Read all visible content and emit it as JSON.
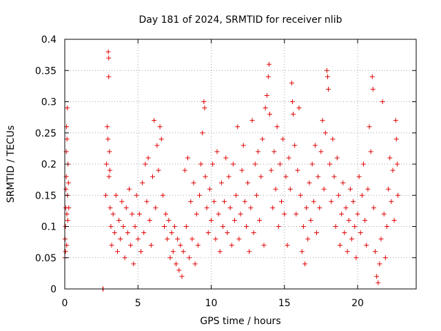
{
  "chart_data": {
    "type": "scatter",
    "title": "Day 181 of 2024, SRMTID for receiver nlib",
    "xlabel": "GPS time / hours",
    "ylabel": "SRMTID / TECUs",
    "xlim": [
      0,
      24
    ],
    "ylim": [
      0,
      0.4
    ],
    "x_ticks": [
      0,
      5,
      10,
      15,
      20
    ],
    "x_tick_labels": [
      "0",
      "5",
      "10",
      "15",
      "20"
    ],
    "y_ticks": [
      0,
      0.05,
      0.1,
      0.15,
      0.2,
      0.25,
      0.3,
      0.35,
      0.4
    ],
    "y_tick_labels": [
      "0",
      "0.05",
      "0.1",
      "0.15",
      "0.2",
      "0.25",
      "0.3",
      "0.35",
      "0.4"
    ],
    "grid": true,
    "marker": "+",
    "color": "#e00000",
    "series": [
      {
        "name": "SRMTID",
        "points": [
          [
            0.0,
            0.05
          ],
          [
            0.02,
            0.08
          ],
          [
            0.05,
            0.06
          ],
          [
            0.05,
            0.1
          ],
          [
            0.07,
            0.13
          ],
          [
            0.08,
            0.16
          ],
          [
            0.1,
            0.18
          ],
          [
            0.1,
            0.22
          ],
          [
            0.12,
            0.26
          ],
          [
            0.13,
            0.07
          ],
          [
            0.14,
            0.12
          ],
          [
            0.15,
            0.24
          ],
          [
            0.17,
            0.29
          ],
          [
            0.18,
            0.15
          ],
          [
            0.2,
            0.11
          ],
          [
            0.22,
            0.2
          ],
          [
            0.25,
            0.17
          ],
          [
            0.27,
            0.13
          ],
          [
            2.6,
            0.0
          ],
          [
            2.62,
            0.0
          ],
          [
            2.8,
            0.15
          ],
          [
            2.85,
            0.2
          ],
          [
            2.9,
            0.26
          ],
          [
            2.95,
            0.24
          ],
          [
            2.97,
            0.38
          ],
          [
            3.0,
            0.37
          ],
          [
            3.0,
            0.34
          ],
          [
            3.02,
            0.18
          ],
          [
            3.05,
            0.22
          ],
          [
            3.08,
            0.19
          ],
          [
            3.1,
            0.13
          ],
          [
            3.15,
            0.1
          ],
          [
            3.2,
            0.07
          ],
          [
            3.3,
            0.12
          ],
          [
            3.4,
            0.09
          ],
          [
            3.5,
            0.15
          ],
          [
            3.6,
            0.06
          ],
          [
            3.7,
            0.11
          ],
          [
            3.8,
            0.08
          ],
          [
            3.9,
            0.14
          ],
          [
            4.0,
            0.1
          ],
          [
            4.1,
            0.05
          ],
          [
            4.2,
            0.13
          ],
          [
            4.3,
            0.09
          ],
          [
            4.4,
            0.16
          ],
          [
            4.5,
            0.07
          ],
          [
            4.6,
            0.12
          ],
          [
            4.7,
            0.04
          ],
          [
            4.8,
            0.1
          ],
          [
            4.9,
            0.15
          ],
          [
            5.0,
            0.08
          ],
          [
            5.1,
            0.12
          ],
          [
            5.2,
            0.06
          ],
          [
            5.3,
            0.17
          ],
          [
            5.4,
            0.09
          ],
          [
            5.5,
            0.2
          ],
          [
            5.6,
            0.14
          ],
          [
            5.7,
            0.21
          ],
          [
            5.8,
            0.11
          ],
          [
            5.9,
            0.07
          ],
          [
            6.0,
            0.18
          ],
          [
            6.1,
            0.27
          ],
          [
            6.2,
            0.13
          ],
          [
            6.3,
            0.23
          ],
          [
            6.4,
            0.19
          ],
          [
            6.5,
            0.26
          ],
          [
            6.6,
            0.24
          ],
          [
            6.7,
            0.15
          ],
          [
            6.8,
            0.1
          ],
          [
            6.9,
            0.12
          ],
          [
            7.0,
            0.08
          ],
          [
            7.1,
            0.11
          ],
          [
            7.2,
            0.05
          ],
          [
            7.3,
            0.09
          ],
          [
            7.4,
            0.06
          ],
          [
            7.5,
            0.1
          ],
          [
            7.6,
            0.04
          ],
          [
            7.7,
            0.08
          ],
          [
            7.8,
            0.03
          ],
          [
            7.9,
            0.07
          ],
          [
            8.0,
            0.02
          ],
          [
            8.1,
            0.06
          ],
          [
            8.2,
            0.19
          ],
          [
            8.3,
            0.1
          ],
          [
            8.4,
            0.21
          ],
          [
            8.5,
            0.05
          ],
          [
            8.6,
            0.14
          ],
          [
            8.7,
            0.08
          ],
          [
            8.8,
            0.17
          ],
          [
            8.9,
            0.04
          ],
          [
            9.0,
            0.12
          ],
          [
            9.1,
            0.07
          ],
          [
            9.2,
            0.15
          ],
          [
            9.3,
            0.2
          ],
          [
            9.4,
            0.25
          ],
          [
            9.5,
            0.3
          ],
          [
            9.55,
            0.29
          ],
          [
            9.6,
            0.18
          ],
          [
            9.7,
            0.13
          ],
          [
            9.8,
            0.09
          ],
          [
            9.9,
            0.16
          ],
          [
            10.0,
            0.11
          ],
          [
            10.1,
            0.2
          ],
          [
            10.2,
            0.14
          ],
          [
            10.3,
            0.08
          ],
          [
            10.4,
            0.22
          ],
          [
            10.5,
            0.12
          ],
          [
            10.6,
            0.06
          ],
          [
            10.7,
            0.17
          ],
          [
            10.8,
            0.1
          ],
          [
            10.9,
            0.14
          ],
          [
            11.0,
            0.21
          ],
          [
            11.1,
            0.09
          ],
          [
            11.2,
            0.18
          ],
          [
            11.3,
            0.13
          ],
          [
            11.4,
            0.07
          ],
          [
            11.5,
            0.2
          ],
          [
            11.6,
            0.11
          ],
          [
            11.7,
            0.15
          ],
          [
            11.8,
            0.26
          ],
          [
            11.9,
            0.08
          ],
          [
            12.0,
            0.12
          ],
          [
            12.1,
            0.19
          ],
          [
            12.2,
            0.23
          ],
          [
            12.3,
            0.14
          ],
          [
            12.4,
            0.1
          ],
          [
            12.5,
            0.17
          ],
          [
            12.6,
            0.06
          ],
          [
            12.7,
            0.13
          ],
          [
            12.8,
            0.27
          ],
          [
            12.9,
            0.09
          ],
          [
            13.0,
            0.2
          ],
          [
            13.1,
            0.15
          ],
          [
            13.2,
            0.22
          ],
          [
            13.3,
            0.11
          ],
          [
            13.4,
            0.18
          ],
          [
            13.5,
            0.24
          ],
          [
            13.6,
            0.07
          ],
          [
            13.7,
            0.29
          ],
          [
            13.8,
            0.31
          ],
          [
            13.9,
            0.34
          ],
          [
            13.95,
            0.36
          ],
          [
            14.0,
            0.28
          ],
          [
            14.1,
            0.19
          ],
          [
            14.2,
            0.13
          ],
          [
            14.3,
            0.22
          ],
          [
            14.4,
            0.16
          ],
          [
            14.5,
            0.26
          ],
          [
            14.6,
            0.1
          ],
          [
            14.7,
            0.2
          ],
          [
            14.8,
            0.14
          ],
          [
            14.9,
            0.24
          ],
          [
            15.0,
            0.12
          ],
          [
            15.1,
            0.18
          ],
          [
            15.2,
            0.07
          ],
          [
            15.3,
            0.21
          ],
          [
            15.4,
            0.16
          ],
          [
            15.5,
            0.33
          ],
          [
            15.55,
            0.3
          ],
          [
            15.6,
            0.28
          ],
          [
            15.7,
            0.23
          ],
          [
            15.8,
            0.12
          ],
          [
            15.9,
            0.19
          ],
          [
            16.0,
            0.29
          ],
          [
            16.1,
            0.15
          ],
          [
            16.2,
            0.06
          ],
          [
            16.3,
            0.1
          ],
          [
            16.4,
            0.04
          ],
          [
            16.5,
            0.13
          ],
          [
            16.6,
            0.08
          ],
          [
            16.7,
            0.17
          ],
          [
            16.8,
            0.11
          ],
          [
            16.9,
            0.2
          ],
          [
            17.0,
            0.14
          ],
          [
            17.1,
            0.23
          ],
          [
            17.2,
            0.09
          ],
          [
            17.3,
            0.18
          ],
          [
            17.4,
            0.13
          ],
          [
            17.5,
            0.22
          ],
          [
            17.6,
            0.27
          ],
          [
            17.7,
            0.16
          ],
          [
            17.8,
            0.25
          ],
          [
            17.9,
            0.35
          ],
          [
            17.95,
            0.34
          ],
          [
            18.0,
            0.32
          ],
          [
            18.1,
            0.2
          ],
          [
            18.2,
            0.14
          ],
          [
            18.3,
            0.24
          ],
          [
            18.4,
            0.18
          ],
          [
            18.5,
            0.1
          ],
          [
            18.6,
            0.21
          ],
          [
            18.7,
            0.15
          ],
          [
            18.8,
            0.07
          ],
          [
            18.9,
            0.12
          ],
          [
            19.0,
            0.17
          ],
          [
            19.1,
            0.09
          ],
          [
            19.2,
            0.13
          ],
          [
            19.3,
            0.06
          ],
          [
            19.4,
            0.11
          ],
          [
            19.5,
            0.16
          ],
          [
            19.6,
            0.08
          ],
          [
            19.7,
            0.14
          ],
          [
            19.8,
            0.1
          ],
          [
            19.9,
            0.05
          ],
          [
            20.0,
            0.12
          ],
          [
            20.1,
            0.18
          ],
          [
            20.2,
            0.09
          ],
          [
            20.3,
            0.15
          ],
          [
            20.4,
            0.2
          ],
          [
            20.5,
            0.11
          ],
          [
            20.6,
            0.07
          ],
          [
            20.7,
            0.16
          ],
          [
            20.8,
            0.26
          ],
          [
            20.9,
            0.22
          ],
          [
            21.0,
            0.34
          ],
          [
            21.05,
            0.32
          ],
          [
            21.1,
            0.13
          ],
          [
            21.2,
            0.06
          ],
          [
            21.3,
            0.02
          ],
          [
            21.4,
            0.01
          ],
          [
            21.5,
            0.04
          ],
          [
            21.6,
            0.08
          ],
          [
            21.7,
            0.3
          ],
          [
            21.8,
            0.12
          ],
          [
            21.9,
            0.05
          ],
          [
            22.0,
            0.1
          ],
          [
            22.1,
            0.16
          ],
          [
            22.2,
            0.21
          ],
          [
            22.3,
            0.14
          ],
          [
            22.4,
            0.19
          ],
          [
            22.5,
            0.11
          ],
          [
            22.6,
            0.27
          ],
          [
            22.65,
            0.24
          ],
          [
            22.7,
            0.2
          ],
          [
            22.75,
            0.15
          ]
        ]
      }
    ]
  }
}
